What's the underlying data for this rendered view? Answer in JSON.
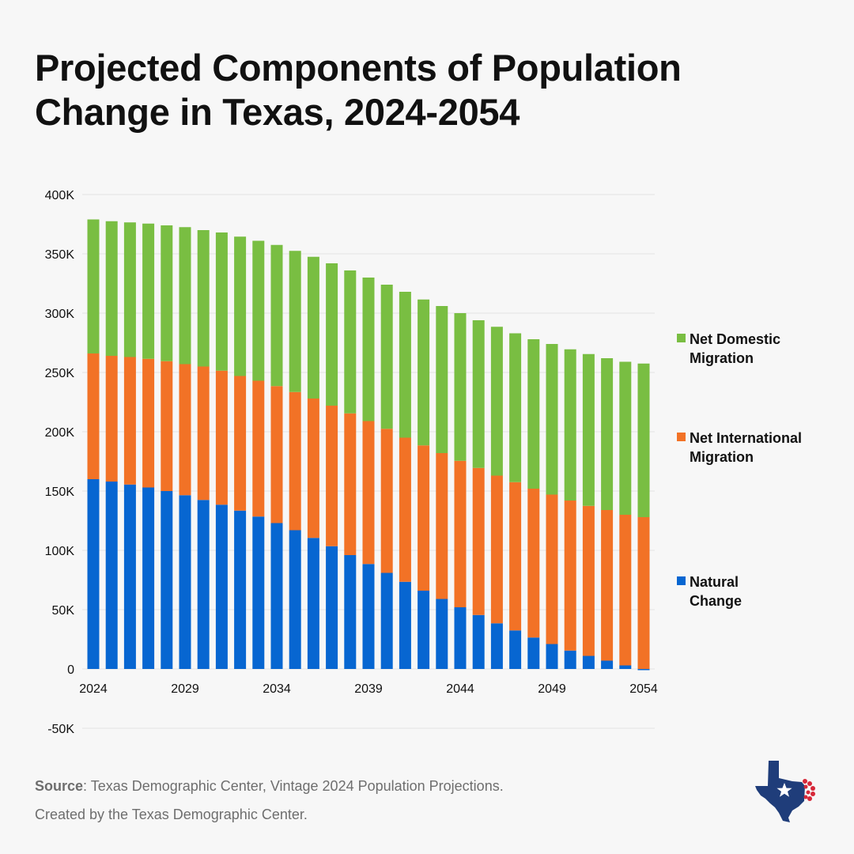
{
  "title": "Projected Components of Population Change in Texas, 2024-2054",
  "source_label": "Source",
  "source_text": ": Texas Demographic Center, Vintage 2024  Population Projections.",
  "credit_text": "Created by the Texas Demographic Center.",
  "colors": {
    "natural": "#0766d1",
    "international": "#f27226",
    "domestic": "#79be42",
    "grid": "#e3e3e3"
  },
  "chart_data": {
    "type": "bar",
    "stacked": true,
    "title": "Projected Components of Population Change in Texas, 2024-2054",
    "xlabel": "",
    "ylabel": "",
    "ylim": [
      -50000,
      400000
    ],
    "yticks": [
      -50000,
      0,
      50000,
      100000,
      150000,
      200000,
      250000,
      300000,
      350000,
      400000
    ],
    "ytick_labels": [
      "-50K",
      "0",
      "50K",
      "100K",
      "150K",
      "200K",
      "250K",
      "300K",
      "350K",
      "400K"
    ],
    "categories": [
      2024,
      2025,
      2026,
      2027,
      2028,
      2029,
      2030,
      2031,
      2032,
      2033,
      2034,
      2035,
      2036,
      2037,
      2038,
      2039,
      2040,
      2041,
      2042,
      2043,
      2044,
      2045,
      2046,
      2047,
      2048,
      2049,
      2050,
      2051,
      2052,
      2053,
      2054
    ],
    "xtick_labels": [
      "2024",
      "2029",
      "2034",
      "2039",
      "2044",
      "2049",
      "2054"
    ],
    "legend_position": "right",
    "series": [
      {
        "name": "Natural Change",
        "legend_lines": [
          "Natural",
          "Change"
        ],
        "color_key": "natural",
        "values": [
          160000,
          158000,
          155500,
          153000,
          150000,
          146500,
          142500,
          138500,
          133500,
          128500,
          123000,
          117000,
          110500,
          103500,
          96000,
          88500,
          81000,
          73500,
          66000,
          59000,
          52000,
          45500,
          38500,
          32500,
          26500,
          21000,
          15500,
          11000,
          7000,
          3000,
          -1000
        ]
      },
      {
        "name": "Net International Migration",
        "legend_lines": [
          "Net International",
          "Migration"
        ],
        "color_key": "international",
        "values": [
          106000,
          106000,
          107500,
          108500,
          109500,
          110500,
          112500,
          113000,
          113500,
          114500,
          115500,
          116500,
          117500,
          118500,
          119500,
          120500,
          121500,
          121500,
          122500,
          123000,
          123500,
          124000,
          124500,
          125000,
          125500,
          126000,
          126500,
          126500,
          127000,
          127000,
          128000
        ]
      },
      {
        "name": "Net Domestic Migration",
        "legend_lines": [
          "Net Domestic",
          "Migration"
        ],
        "color_key": "domestic",
        "values": [
          113000,
          113500,
          113500,
          114000,
          114500,
          115500,
          115000,
          116500,
          117500,
          118000,
          119000,
          119000,
          119500,
          120000,
          120500,
          121000,
          121500,
          123000,
          123000,
          124000,
          124500,
          124500,
          125500,
          125500,
          126000,
          127000,
          127500,
          128000,
          128000,
          129000,
          129500
        ]
      }
    ]
  }
}
